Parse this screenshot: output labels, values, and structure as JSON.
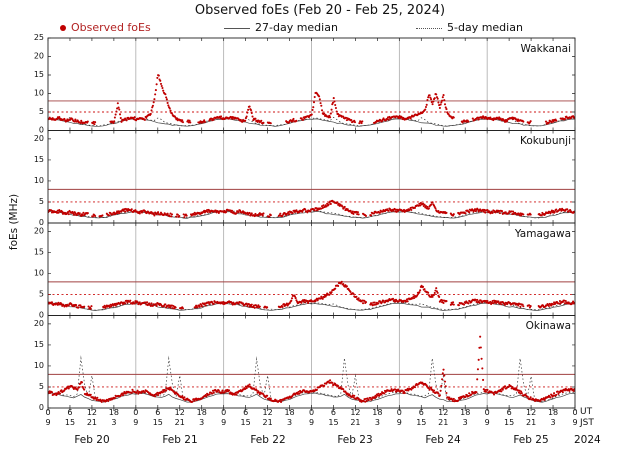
{
  "title": "Observed foEs (Feb 20 - Feb 25, 2024)",
  "ylabel": "foEs (MHz)",
  "legend": [
    {
      "label": "Observed foEs",
      "swatch": "red-dot-icon",
      "color": "#c00000"
    },
    {
      "label": "27-day median",
      "swatch": "solid-line-icon",
      "color": "#555555"
    },
    {
      "label": "5-day median",
      "swatch": "dotted-line-icon",
      "color": "#555555"
    }
  ],
  "right_labels": {
    "ut": "UT",
    "jst": "JST",
    "year": "2024"
  },
  "chart_data": {
    "type": "scatter",
    "x_unit": "hours UT from Feb 20 00:00 (6 days, tick every 6 h)",
    "days": [
      "Feb 20",
      "Feb 21",
      "Feb 22",
      "Feb 23",
      "Feb 24",
      "Feb 25"
    ],
    "ut_tick_labels": [
      "0",
      "6",
      "12",
      "18"
    ],
    "jst_tick_labels": [
      "9",
      "15",
      "21",
      "3"
    ],
    "thresholds": {
      "solid_red": 8,
      "dotted_red": 5
    },
    "colors": {
      "observed": "#c00000",
      "median27": "#444444",
      "median5": "#333333",
      "threshold_solid": "#a04040",
      "threshold_dotted": "#cc1111",
      "dayline": "#aaaaaa",
      "frame": "#222222"
    },
    "stations": [
      {
        "name": "Wakkanai",
        "ylim": [
          0,
          25
        ],
        "yticks": [
          0,
          5,
          10,
          15,
          20,
          25
        ],
        "observed": [
          3.4,
          3.2,
          3.1,
          3.3,
          2.9,
          2.7,
          3.0,
          2.8,
          2.5,
          2.3,
          2.1,
          null,
          2.0,
          null,
          null,
          null,
          null,
          2.1,
          2.4,
          7.2,
          2.6,
          2.9,
          3.2,
          3.5,
          3.1,
          3.3,
          2.9,
          3.6,
          4.4,
          8.6,
          15.2,
          11.8,
          9.6,
          6.3,
          4.1,
          3.3,
          2.6,
          null,
          2.4,
          null,
          null,
          2.1,
          2.4,
          null,
          2.8,
          3.1,
          3.4,
          3.6,
          3.3,
          3.1,
          3.4,
          3.2,
          2.9,
          2.6,
          3.0,
          6.8,
          3.1,
          2.7,
          2.3,
          null,
          2.1,
          null,
          null,
          null,
          null,
          2.2,
          2.5,
          2.8,
          null,
          3.0,
          3.3,
          3.6,
          4.1,
          10.4,
          9.1,
          4.6,
          3.9,
          3.6,
          8.9,
          4.3,
          3.7,
          3.3,
          2.9,
          2.5,
          null,
          2.3,
          null,
          null,
          null,
          2.1,
          2.5,
          2.8,
          3.0,
          3.3,
          3.6,
          3.8,
          3.6,
          3.3,
          3.1,
          3.5,
          3.9,
          4.3,
          4.9,
          5.6,
          9.7,
          7.4,
          10.1,
          6.1,
          9.3,
          4.6,
          3.6,
          null,
          null,
          2.3,
          2.6,
          null,
          2.9,
          3.1,
          3.4,
          3.6,
          3.4,
          3.2,
          3.0,
          3.3,
          2.9,
          2.6,
          3.0,
          3.2,
          2.8,
          2.5,
          null,
          2.2,
          null,
          null,
          null,
          null,
          2.1,
          2.4,
          2.7,
          null,
          3.0,
          3.2,
          3.5,
          3.7
        ],
        "median27_daily": [
          3.0,
          3.1,
          3.0,
          2.8,
          2.6,
          2.4,
          2.2,
          2.0,
          1.9,
          1.7,
          1.5,
          1.4,
          1.3,
          1.2,
          1.2,
          1.3,
          1.5,
          1.7,
          1.9,
          2.2,
          2.5,
          2.7,
          2.9,
          3.0
        ],
        "median5_daily": [
          3.2,
          3.3,
          3.2,
          3.0,
          2.8,
          2.7,
          3.5,
          2.9,
          2.2,
          1.9,
          1.7,
          1.5,
          1.4,
          1.3,
          1.3,
          1.4,
          1.6,
          1.8,
          2.1,
          2.4,
          2.7,
          2.9,
          3.1,
          3.2
        ]
      },
      {
        "name": "Kokubunji",
        "ylim": [
          0,
          22
        ],
        "yticks": [
          0,
          5,
          10,
          15,
          20
        ],
        "observed": [
          2.9,
          2.7,
          2.5,
          2.8,
          2.4,
          2.2,
          2.6,
          2.3,
          2.1,
          2.0,
          2.2,
          null,
          1.9,
          null,
          1.8,
          null,
          2.0,
          2.2,
          2.4,
          2.6,
          2.8,
          3.0,
          3.1,
          2.9,
          2.8,
          2.6,
          2.9,
          2.5,
          2.3,
          2.1,
          2.4,
          2.2,
          2.0,
          1.9,
          null,
          1.8,
          null,
          1.7,
          null,
          1.9,
          2.1,
          2.3,
          2.5,
          2.7,
          2.9,
          3.0,
          2.8,
          2.7,
          2.7,
          2.9,
          2.6,
          2.4,
          2.8,
          2.5,
          2.3,
          2.1,
          2.0,
          1.9,
          2.1,
          null,
          1.8,
          null,
          null,
          1.9,
          2.0,
          2.2,
          2.4,
          2.6,
          2.8,
          2.9,
          3.0,
          2.8,
          3.0,
          3.2,
          3.5,
          3.8,
          4.2,
          4.8,
          5.1,
          4.6,
          4.0,
          3.5,
          3.0,
          2.6,
          2.3,
          null,
          2.0,
          null,
          2.1,
          2.3,
          2.5,
          2.7,
          2.9,
          3.1,
          3.2,
          3.0,
          2.9,
          3.1,
          2.8,
          3.3,
          3.6,
          4.1,
          4.5,
          3.9,
          3.4,
          4.8,
          3.0,
          2.7,
          2.4,
          null,
          2.1,
          null,
          2.2,
          2.4,
          2.6,
          2.8,
          3.0,
          3.1,
          2.9,
          2.8,
          2.8,
          2.6,
          2.9,
          2.7,
          2.5,
          2.3,
          2.6,
          2.4,
          2.2,
          2.1,
          null,
          1.9,
          null,
          null,
          2.0,
          2.1,
          2.3,
          2.5,
          2.7,
          2.9,
          3.0,
          3.1,
          2.9,
          2.7
        ],
        "median27_daily": [
          2.6,
          2.7,
          2.6,
          2.5,
          2.3,
          2.2,
          2.0,
          1.9,
          1.8,
          1.6,
          1.5,
          1.4,
          1.3,
          1.2,
          1.2,
          1.3,
          1.4,
          1.6,
          1.8,
          2.0,
          2.2,
          2.4,
          2.5,
          2.6
        ],
        "median5_daily": [
          2.8,
          2.9,
          2.8,
          2.7,
          2.5,
          2.4,
          2.3,
          2.1,
          1.9,
          1.7,
          1.6,
          1.5,
          1.4,
          1.3,
          1.3,
          1.4,
          1.5,
          1.7,
          1.9,
          2.1,
          2.3,
          2.5,
          2.7,
          2.8
        ]
      },
      {
        "name": "Yamagawa",
        "ylim": [
          0,
          22
        ],
        "yticks": [
          0,
          5,
          10,
          15,
          20
        ],
        "observed": [
          3.0,
          2.8,
          2.6,
          2.9,
          2.5,
          2.3,
          2.7,
          2.4,
          2.2,
          2.1,
          null,
          1.9,
          null,
          null,
          null,
          2.0,
          2.2,
          2.4,
          2.6,
          2.8,
          3.0,
          3.2,
          3.3,
          3.1,
          3.1,
          2.9,
          3.2,
          2.8,
          2.6,
          2.4,
          2.7,
          2.5,
          2.3,
          2.2,
          2.0,
          null,
          1.9,
          null,
          null,
          null,
          2.1,
          2.3,
          2.5,
          2.7,
          2.9,
          3.1,
          3.2,
          3.0,
          3.0,
          3.2,
          2.9,
          2.7,
          3.1,
          2.8,
          2.6,
          2.4,
          2.2,
          2.1,
          null,
          2.0,
          null,
          null,
          null,
          2.1,
          2.3,
          2.5,
          2.7,
          4.9,
          3.1,
          3.2,
          3.4,
          3.2,
          3.4,
          3.6,
          3.9,
          4.3,
          4.8,
          5.4,
          6.2,
          7.1,
          7.8,
          7.2,
          6.3,
          5.2,
          4.4,
          3.8,
          3.2,
          null,
          2.6,
          2.8,
          3.0,
          3.2,
          3.4,
          3.6,
          3.7,
          3.5,
          3.4,
          3.2,
          3.6,
          3.9,
          4.4,
          5.1,
          7.0,
          5.8,
          4.9,
          4.2,
          6.4,
          3.6,
          3.2,
          null,
          2.8,
          null,
          2.6,
          2.8,
          3.0,
          3.2,
          3.4,
          3.5,
          3.3,
          3.2,
          3.2,
          3.0,
          3.3,
          3.1,
          2.9,
          2.7,
          3.0,
          2.8,
          2.6,
          2.4,
          null,
          2.2,
          null,
          null,
          2.1,
          2.2,
          2.4,
          2.6,
          2.8,
          3.0,
          3.2,
          3.3,
          3.1,
          3.0
        ],
        "median27_daily": [
          2.8,
          2.9,
          2.8,
          2.6,
          2.5,
          2.3,
          2.1,
          2.0,
          1.9,
          1.7,
          1.6,
          1.4,
          1.3,
          1.3,
          1.3,
          1.4,
          1.5,
          1.7,
          1.9,
          2.1,
          2.3,
          2.5,
          2.7,
          2.8
        ],
        "median5_daily": [
          3.0,
          3.1,
          3.0,
          2.8,
          2.7,
          2.6,
          2.8,
          2.4,
          2.1,
          1.9,
          1.7,
          1.5,
          1.4,
          1.4,
          1.4,
          1.5,
          1.6,
          1.8,
          2.0,
          2.3,
          2.5,
          2.7,
          2.9,
          3.0
        ]
      },
      {
        "name": "Okinawa",
        "ylim": [
          0,
          22
        ],
        "yticks": [
          0,
          5,
          10,
          15,
          20
        ],
        "observed": [
          3.8,
          3.5,
          3.2,
          3.6,
          4.1,
          4.6,
          5.2,
          4.7,
          4.2,
          6.4,
          3.6,
          3.1,
          2.7,
          2.3,
          1.9,
          1.6,
          1.8,
          2.1,
          2.4,
          2.8,
          3.2,
          3.6,
          3.9,
          4.0,
          3.9,
          3.6,
          4.1,
          3.7,
          3.3,
          2.9,
          3.4,
          3.8,
          4.3,
          4.8,
          4.1,
          3.5,
          2.9,
          2.4,
          2.0,
          1.7,
          1.9,
          2.2,
          2.6,
          3.0,
          3.4,
          3.8,
          4.1,
          3.9,
          3.8,
          4.0,
          3.6,
          3.3,
          3.8,
          4.3,
          4.9,
          5.4,
          4.6,
          4.0,
          3.4,
          2.9,
          2.5,
          2.1,
          1.8,
          1.6,
          1.9,
          2.3,
          2.7,
          3.1,
          3.5,
          3.9,
          4.2,
          4.0,
          4.1,
          4.4,
          4.8,
          5.3,
          5.8,
          6.3,
          5.7,
          5.1,
          4.5,
          3.9,
          3.3,
          2.8,
          2.4,
          2.0,
          1.7,
          1.9,
          2.2,
          2.6,
          3.0,
          3.4,
          3.8,
          4.1,
          4.3,
          4.1,
          4.0,
          3.7,
          4.2,
          4.6,
          5.1,
          5.6,
          6.1,
          5.5,
          4.8,
          4.2,
          3.6,
          3.0,
          9.3,
          2.5,
          2.1,
          1.8,
          2.0,
          2.4,
          2.8,
          3.2,
          3.6,
          4.0,
          16.8,
          4.2,
          4.1,
          3.8,
          3.5,
          3.9,
          4.4,
          4.9,
          5.3,
          4.8,
          4.3,
          3.7,
          3.1,
          2.6,
          2.2,
          1.9,
          1.7,
          2.0,
          2.3,
          2.7,
          3.1,
          3.5,
          3.9,
          4.2,
          4.4,
          4.2
        ],
        "median27_daily": [
          3.4,
          3.5,
          3.4,
          3.2,
          3.0,
          2.8,
          2.6,
          2.5,
          2.8,
          3.2,
          2.6,
          2.2,
          1.9,
          1.7,
          1.5,
          1.4,
          1.6,
          1.8,
          2.1,
          2.4,
          2.7,
          3.0,
          3.2,
          3.4
        ],
        "median5_daily": [
          3.6,
          3.7,
          3.6,
          3.4,
          3.2,
          3.0,
          2.9,
          2.8,
          3.4,
          11.8,
          5.5,
          2.6,
          7.6,
          2.0,
          1.7,
          1.6,
          1.8,
          2.1,
          2.4,
          2.8,
          3.1,
          3.4,
          3.6,
          3.7
        ]
      }
    ]
  }
}
